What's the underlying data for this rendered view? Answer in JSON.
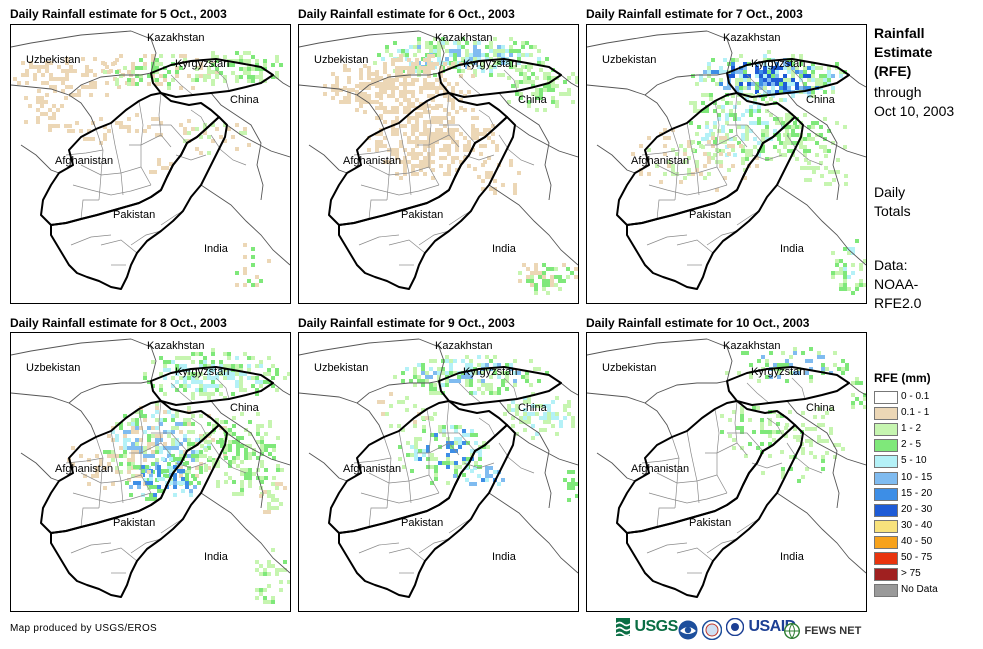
{
  "panels": [
    {
      "title": "Daily Rainfall estimate for 5 Oct., 2003",
      "rain_level": "light"
    },
    {
      "title": "Daily Rainfall estimate for 6 Oct., 2003",
      "rain_level": "moderate"
    },
    {
      "title": "Daily Rainfall estimate for 7 Oct., 2003",
      "rain_level": "heavy"
    },
    {
      "title": "Daily Rainfall estimate for 8 Oct., 2003",
      "rain_level": "moderate"
    },
    {
      "title": "Daily Rainfall estimate for 9 Oct., 2003",
      "rain_level": "moderate"
    },
    {
      "title": "Daily Rainfall estimate for 10 Oct., 2003",
      "rain_level": "light"
    }
  ],
  "map_labels": {
    "kazakhstan": "Kazakhstan",
    "uzbekistan": "Uzbekistan",
    "kyrgyzstan": "Kyrgyzstan",
    "china": "China",
    "afghanistan": "Afghanistan",
    "pakistan": "Pakistan",
    "india": "India"
  },
  "sidebar": {
    "title_lines": [
      "Rainfall",
      "Estimate",
      "(RFE)"
    ],
    "through": "through",
    "date": "Oct 10, 2003",
    "daily": "Daily",
    "totals": "Totals",
    "data_label": "Data:",
    "data_source_1": "NOAA-",
    "data_source_2": "RFE2.0"
  },
  "legend": {
    "title": "RFE (mm)",
    "items": [
      {
        "label": "0 - 0.1",
        "color": "#ffffff"
      },
      {
        "label": "0.1 - 1",
        "color": "#ecd7b6"
      },
      {
        "label": "1 - 2",
        "color": "#c6f5b0"
      },
      {
        "label": "2 - 5",
        "color": "#7fe87a"
      },
      {
        "label": "5 - 10",
        "color": "#b4f1f7"
      },
      {
        "label": "10 - 15",
        "color": "#7fbbf0"
      },
      {
        "label": "15 - 20",
        "color": "#3d8ee6"
      },
      {
        "label": "20 - 30",
        "color": "#1e5bd6"
      },
      {
        "label": "30 - 40",
        "color": "#f8e27c"
      },
      {
        "label": "40 - 50",
        "color": "#f7a21b"
      },
      {
        "label": "50 - 75",
        "color": "#e8340e"
      },
      {
        "label": "> 75",
        "color": "#a02020"
      },
      {
        "label": "No Data",
        "color": "#9a9a9a"
      }
    ]
  },
  "footer": {
    "credit": "Map produced by USGS/EROS",
    "usgs": "USGS",
    "usaid": "USAID",
    "fewsnet": "FEWS NET"
  }
}
